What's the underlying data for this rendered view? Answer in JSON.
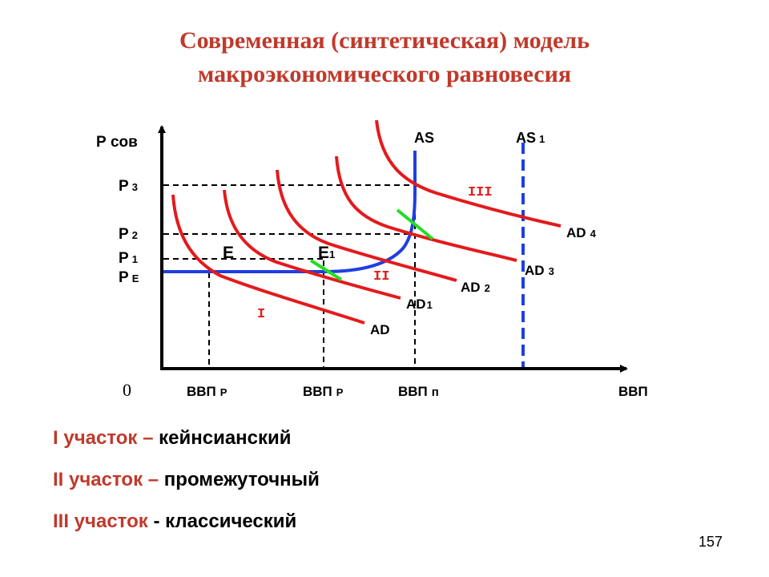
{
  "title": {
    "line1": "Современная (синтетическая) модель",
    "line2": "макроэкономического равновесия"
  },
  "colors": {
    "title": "#c0392b",
    "ad_curves": "#e41a1c",
    "as_curve": "#1f3fe0",
    "as1_dashed": "#1f3fe0",
    "tangent_marks": "#22dd22",
    "segment_numerals": "#e41a1c"
  },
  "diagram": {
    "y_axis_label": "Р сов",
    "x_axis_label": "ВВП",
    "origin_label": "0",
    "price_levels": [
      {
        "main": "Р",
        "sub": "3"
      },
      {
        "main": "Р",
        "sub": "2"
      },
      {
        "main": "Р",
        "sub": "1"
      },
      {
        "main": "Р",
        "sub": "Е"
      }
    ],
    "output_levels": [
      {
        "main": "ВВП",
        "sub": "Р"
      },
      {
        "main": "ВВП",
        "sub": "Р"
      },
      {
        "main": "ВВП",
        "sub": "п"
      }
    ],
    "as_labels": [
      {
        "main": "AS",
        "sub": ""
      },
      {
        "main": "AS",
        "sub": "1"
      }
    ],
    "ad_labels": [
      {
        "main": "AD",
        "sub": ""
      },
      {
        "main": "AD",
        "sub": "1"
      },
      {
        "main": "AD",
        "sub": "2"
      },
      {
        "main": "AD",
        "sub": "3"
      },
      {
        "main": "AD",
        "sub": "4"
      }
    ],
    "points": [
      {
        "main": "E",
        "sub": ""
      },
      {
        "main": "E",
        "sub": "1"
      }
    ],
    "segments": [
      "I",
      "II",
      "III"
    ]
  },
  "notes": [
    {
      "numeral": "I",
      "dash": " участок –",
      "text": " кейнсианский"
    },
    {
      "numeral": "II",
      "dash": " участок –",
      "text": " промежуточный"
    },
    {
      "numeral": "III",
      "dash": " участок",
      "text": " - классический"
    }
  ],
  "page_number": "157"
}
